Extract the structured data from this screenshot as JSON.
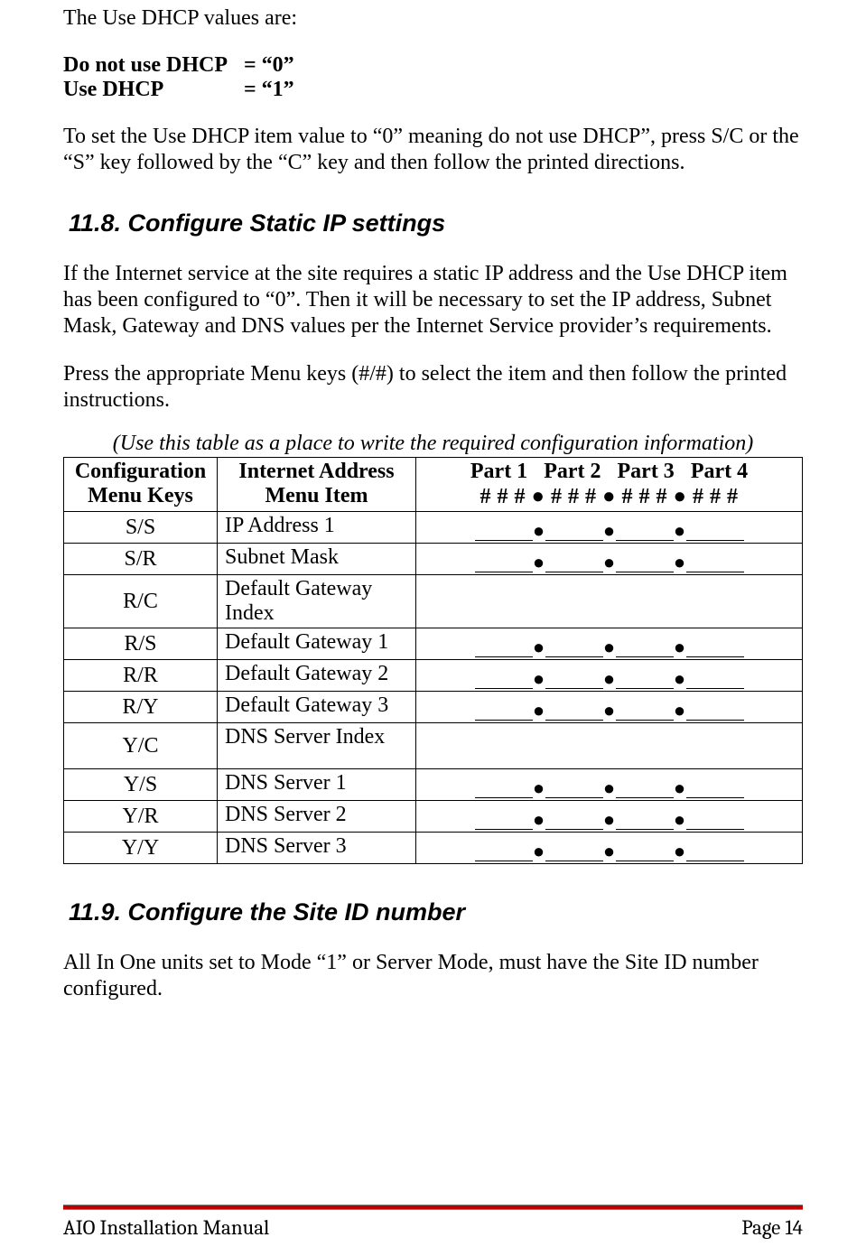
{
  "intro": {
    "line1": "The Use DHCP values are:",
    "row1_label": "Do not use DHCP",
    "row1_val": "= “0”",
    "row2_label": "Use DHCP",
    "row2_val": "= “1”",
    "para2": "To set the Use DHCP item value to “0” meaning do not use DHCP”, press S/C or the “S” key followed by the “C” key and then follow the printed directions."
  },
  "s118": {
    "heading": "11.8. Configure Static IP settings",
    "p1": "If the Internet service at the site requires a static IP address and the Use DHCP item has been configured to “0”.  Then it will be necessary to set the IP address, Subnet Mask, Gateway and DNS values per the Internet Service provider’s requirements.",
    "p2": "Press the appropriate Menu keys (#/#) to select the item and then follow the printed instructions.",
    "caption": "(Use this table as a place to write the required configuration information)"
  },
  "table": {
    "h1a": "Configuration",
    "h1b": "Menu Keys",
    "h2a": "Internet Address",
    "h2b": "Menu Item",
    "parts": {
      "p1": "Part 1",
      "p2": "Part 2",
      "p3": "Part 3",
      "p4": "Part 4"
    },
    "hash_row": "# # #  ●  # # #  ●  # # #   ●  # # #",
    "rows": [
      {
        "key": "S/S",
        "item": "IP Address 1",
        "blank": true
      },
      {
        "key": "S/R",
        "item": "Subnet Mask",
        "blank": true
      },
      {
        "key": "R/C",
        "item": "Default Gateway Index",
        "blank": false
      },
      {
        "key": "R/S",
        "item": "Default Gateway 1",
        "blank": true
      },
      {
        "key": "R/R",
        "item": "Default Gateway 2",
        "blank": true
      },
      {
        "key": "R/Y",
        "item": "Default Gateway 3",
        "blank": true
      },
      {
        "key": "Y/C",
        "item": "DNS Server Index",
        "blank": false
      },
      {
        "key": "Y/S",
        "item": "DNS Server 1",
        "blank": true
      },
      {
        "key": "Y/R",
        "item": "DNS Server 2",
        "blank": true
      },
      {
        "key": "Y/Y",
        "item": "DNS Server 3",
        "blank": true
      }
    ]
  },
  "s119": {
    "heading": "11.9. Configure the Site ID number",
    "p1": "All In One units set to Mode “1” or Server Mode, must have the Site ID number configured."
  },
  "footer": {
    "left": "AIO Installation Manual",
    "right": "Page 14",
    "line_color": "#c00000"
  }
}
